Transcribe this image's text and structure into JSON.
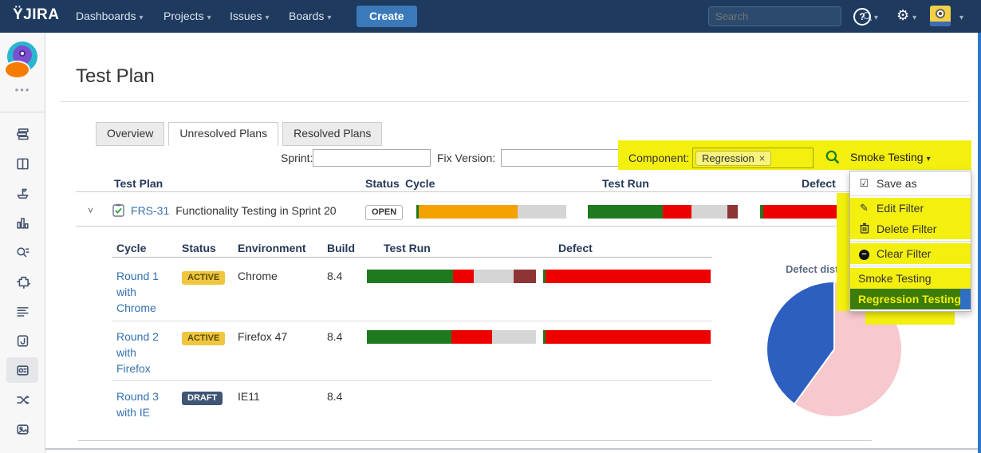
{
  "navbar": {
    "logo_mark": "Ÿ",
    "logo_text": "JIRA",
    "menus": [
      "Dashboards",
      "Projects",
      "Issues",
      "Boards"
    ],
    "create_label": "Create",
    "search_placeholder": "Search"
  },
  "icons": {
    "caret_down": "▾",
    "chevron_down": "˅",
    "help": "?",
    "gear": "⚙",
    "more": "•••",
    "checkbox_checked": "☑",
    "pencil": "✎",
    "minus": "−",
    "remove": "×"
  },
  "page": {
    "title": "Test Plan"
  },
  "tabs": {
    "items": [
      "Overview",
      "Unresolved Plans",
      "Resolved Plans"
    ],
    "active": "Unresolved Plans"
  },
  "filters": {
    "sprint_label": "Sprint:",
    "fix_version_label": "Fix Version:",
    "component_label": "Component:",
    "component_tag": "Regression",
    "saved_filter_label": "Smoke Testing"
  },
  "filter_menu": {
    "items": [
      "Save as",
      "Edit Filter",
      "Delete Filter",
      "Clear Filter",
      "Smoke Testing",
      "Regression Testing"
    ]
  },
  "plan_table": {
    "headers": {
      "plan": "Test Plan",
      "status": "Status",
      "cycle": "Cycle",
      "test_run": "Test Run",
      "defect": "Defect"
    },
    "row": {
      "key": "FRS-31",
      "summary": "Functionality Testing in Sprint 20",
      "status": "OPEN",
      "cycle_bar": [
        {
          "color": "#1f7a1f",
          "pct": 1.5
        },
        {
          "color": "#f3a200",
          "pct": 66
        },
        {
          "color": "#d5d5d5",
          "pct": 32.5
        }
      ],
      "test_run_bar": [
        {
          "color": "#1f7a1f",
          "pct": 50
        },
        {
          "color": "#ee0000",
          "pct": 19
        },
        {
          "color": "#d5d5d5",
          "pct": 24
        },
        {
          "color": "#8f3434",
          "pct": 7
        }
      ],
      "defect_bar": [
        {
          "color": "#1f7a1f",
          "pct": 2
        },
        {
          "color": "#ee0000",
          "pct": 98
        }
      ]
    }
  },
  "cycle_table": {
    "headers": {
      "cycle": "Cycle",
      "status": "Status",
      "environment": "Environment",
      "build": "Build",
      "test_run": "Test Run",
      "defect": "Defect"
    },
    "rows": [
      {
        "cycle": "Round 1 with Chrome",
        "status": "ACTIVE",
        "environment": "Chrome",
        "build": "8.4",
        "test_run_bar": [
          {
            "color": "#1f7a1f",
            "pct": 51
          },
          {
            "color": "#ee0000",
            "pct": 12
          },
          {
            "color": "#d5d5d5",
            "pct": 24
          },
          {
            "color": "#8f3434",
            "pct": 13
          }
        ],
        "defect_bar": [
          {
            "color": "#1f7a1f",
            "pct": 1.5
          },
          {
            "color": "#ee0000",
            "pct": 98.5
          }
        ]
      },
      {
        "cycle": "Round 2 with Firefox",
        "status": "ACTIVE",
        "environment": "Firefox 47",
        "build": "8.4",
        "test_run_bar": [
          {
            "color": "#1f7a1f",
            "pct": 50
          },
          {
            "color": "#ee0000",
            "pct": 24
          },
          {
            "color": "#d5d5d5",
            "pct": 26
          }
        ],
        "defect_bar": [
          {
            "color": "#1f7a1f",
            "pct": 1.5
          },
          {
            "color": "#ee0000",
            "pct": 98.5
          }
        ]
      },
      {
        "cycle": "Round 3 with IE",
        "status": "DRAFT",
        "environment": "IE11",
        "build": "8.4",
        "test_run_bar": [],
        "defect_bar": []
      }
    ]
  },
  "chart_data": {
    "type": "pie",
    "title": "Defect distribution",
    "values": [
      40,
      60
    ],
    "colors": [
      "#2c5fc0",
      "#f7c8ce"
    ],
    "legend": "none"
  },
  "colors": {
    "navbar_bg": "#1e3a5f",
    "create_btn": "#3b7aba",
    "link": "#3572b0",
    "annotation_yellow": "#f3ef0e",
    "annotation_green_bg": "#3e7c0a",
    "hover_blue": "#2f6fc2",
    "active_badge_bg": "#efc63e",
    "draft_badge_bg": "#3e5574",
    "bar_green": "#1f7a1f",
    "bar_orange": "#f3a200",
    "bar_red": "#ee0000",
    "bar_maroon": "#8f3434",
    "bar_gray": "#d5d5d5"
  }
}
